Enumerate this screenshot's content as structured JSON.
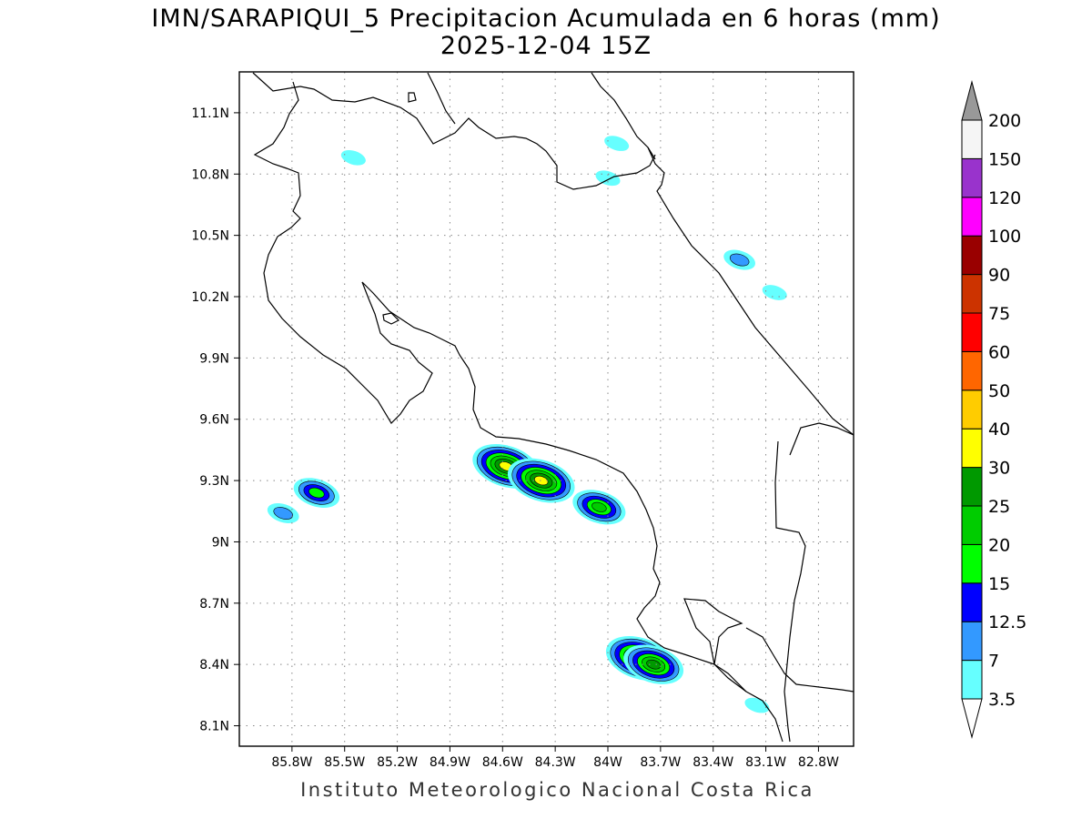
{
  "title": {
    "line1": "IMN/SARAPIQUI_5 Precipitacion Acumulada en 6 horas (mm)",
    "line2": "2025-12-04 15Z"
  },
  "footer": "Instituto Meteorologico Nacional Costa Rica",
  "map": {
    "lon_range": [
      -86.1,
      -82.6
    ],
    "lat_range": [
      8.0,
      11.3
    ],
    "lat_ticks": [
      {
        "value": 11.1,
        "label": "11.1N"
      },
      {
        "value": 10.8,
        "label": "10.8N"
      },
      {
        "value": 10.5,
        "label": "10.5N"
      },
      {
        "value": 10.2,
        "label": "10.2N"
      },
      {
        "value": 9.9,
        "label": "9.9N"
      },
      {
        "value": 9.6,
        "label": "9.6N"
      },
      {
        "value": 9.3,
        "label": "9.3N"
      },
      {
        "value": 9.0,
        "label": "9N"
      },
      {
        "value": 8.7,
        "label": "8.7N"
      },
      {
        "value": 8.4,
        "label": "8.4N"
      },
      {
        "value": 8.1,
        "label": "8.1N"
      }
    ],
    "lon_ticks": [
      {
        "value": -85.8,
        "label": "85.8W"
      },
      {
        "value": -85.5,
        "label": "85.5W"
      },
      {
        "value": -85.2,
        "label": "85.2W"
      },
      {
        "value": -84.9,
        "label": "84.9W"
      },
      {
        "value": -84.6,
        "label": "84.6W"
      },
      {
        "value": -84.3,
        "label": "84.3W"
      },
      {
        "value": -84.0,
        "label": "84W"
      },
      {
        "value": -83.7,
        "label": "83.7W"
      },
      {
        "value": -83.4,
        "label": "83.4W"
      },
      {
        "value": -83.1,
        "label": "83.1W"
      },
      {
        "value": -82.8,
        "label": "82.8W"
      }
    ],
    "grid": "dotted"
  },
  "colorbar": {
    "unit": "mm",
    "levels": [
      "3.5",
      "7",
      "12.5",
      "15",
      "20",
      "25",
      "30",
      "40",
      "50",
      "60",
      "75",
      "90",
      "100",
      "120",
      "150",
      "200"
    ],
    "colors": [
      "#66ffff",
      "#3399ff",
      "#0000ff",
      "#00ff00",
      "#00cc00",
      "#009900",
      "#ffff00",
      "#ffcc00",
      "#ff6600",
      "#ff0000",
      "#cc3300",
      "#990000",
      "#ff00ff",
      "#9933cc",
      "#f5f5f5"
    ],
    "over_color": "#999999"
  },
  "precip_areas": [
    {
      "lon": -85.45,
      "lat": 10.88,
      "mm": 3.5
    },
    {
      "lon": -83.95,
      "lat": 10.95,
      "mm": 3.5
    },
    {
      "lon": -84.0,
      "lat": 10.78,
      "mm": 3.5
    },
    {
      "lon": -83.25,
      "lat": 10.38,
      "mm": 7
    },
    {
      "lon": -83.05,
      "lat": 10.22,
      "mm": 3.5
    },
    {
      "lon": -85.66,
      "lat": 9.24,
      "mm": 15
    },
    {
      "lon": -85.85,
      "lat": 9.14,
      "mm": 7
    },
    {
      "lon": -84.58,
      "lat": 9.37,
      "mm": 30
    },
    {
      "lon": -84.38,
      "lat": 9.3,
      "mm": 30
    },
    {
      "lon": -84.05,
      "lat": 9.17,
      "mm": 20
    },
    {
      "lon": -83.82,
      "lat": 8.43,
      "mm": 30
    },
    {
      "lon": -83.74,
      "lat": 8.4,
      "mm": 25
    },
    {
      "lon": -83.15,
      "lat": 8.2,
      "mm": 3.5
    }
  ]
}
